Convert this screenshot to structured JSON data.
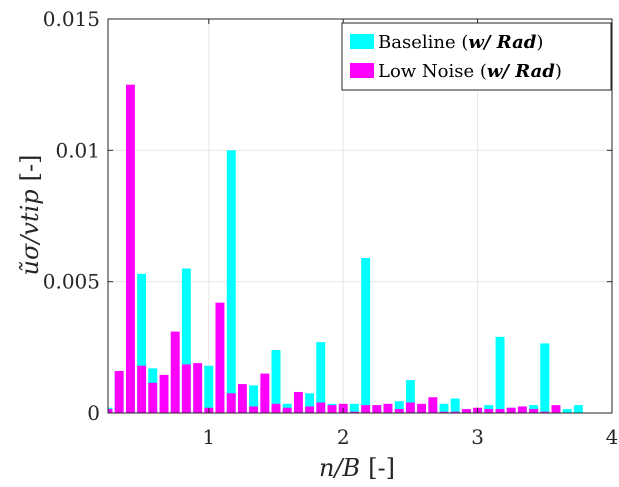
{
  "chart_data": {
    "type": "bar",
    "xlabel": {
      "main": "n/B",
      "unit": "[-]"
    },
    "ylabel": {
      "main": "ũσ/vtip",
      "unit": "[-]"
    },
    "xlim": [
      0.25,
      4.0
    ],
    "ylim": [
      0,
      0.015
    ],
    "xticks": [
      "1",
      "2",
      "3",
      "4"
    ],
    "yticks": [
      "0",
      "0.005",
      "0.01",
      "0.015"
    ],
    "grid": true,
    "legend_position": "top-right",
    "series": [
      {
        "name": "Baseline (w/ Rad)",
        "name_plain": "Baseline (",
        "name_bold": "w/ Rad",
        "name_close": ")",
        "color": "#00ffff",
        "x": [
          0.25,
          0.333,
          0.417,
          0.5,
          0.583,
          0.667,
          0.75,
          0.833,
          0.917,
          1.0,
          1.083,
          1.167,
          1.25,
          1.333,
          1.417,
          1.5,
          1.583,
          1.667,
          1.75,
          1.833,
          1.917,
          2.0,
          2.083,
          2.167,
          2.25,
          2.333,
          2.417,
          2.5,
          2.583,
          2.667,
          2.75,
          2.833,
          2.917,
          3.0,
          3.083,
          3.167,
          3.25,
          3.333,
          3.417,
          3.5,
          3.583,
          3.667,
          3.75,
          3.833,
          3.917,
          4.0
        ],
        "values": [
          0.0002,
          0.0015,
          0.0019,
          0.0053,
          0.0017,
          0.00105,
          0.0014,
          0.0055,
          0.0018,
          0.0018,
          0.0003,
          0.01,
          0.00075,
          0.00105,
          0.00045,
          0.0024,
          0.00035,
          0.0002,
          0.00075,
          0.0027,
          0.00035,
          0.00025,
          0.00035,
          0.0059,
          0.0003,
          0.0003,
          0.00045,
          0.00125,
          0.00025,
          0.0004,
          0.00035,
          0.00055,
          0.00015,
          0.00015,
          0.0003,
          0.0029,
          0.0002,
          0.0002,
          0.0003,
          0.00265,
          0.0002,
          0.00015,
          0.0003,
          0,
          0,
          0
        ]
      },
      {
        "name": "Low Noise (w/ Rad)",
        "name_plain": "Low Noise (",
        "name_bold": "w/ Rad",
        "name_close": ")",
        "color": "#ff00ff",
        "x": [
          0.25,
          0.333,
          0.417,
          0.5,
          0.583,
          0.667,
          0.75,
          0.833,
          0.917,
          1.0,
          1.083,
          1.167,
          1.25,
          1.333,
          1.417,
          1.5,
          1.583,
          1.667,
          1.75,
          1.833,
          1.917,
          2.0,
          2.083,
          2.167,
          2.25,
          2.333,
          2.417,
          2.5,
          2.583,
          2.667,
          2.75,
          2.833,
          2.917,
          3.0,
          3.083,
          3.167,
          3.25,
          3.333,
          3.417,
          3.5,
          3.583,
          3.667,
          3.75,
          3.833,
          3.917,
          4.0
        ],
        "values": [
          0.00015,
          0.0016,
          0.0125,
          0.0018,
          0.00115,
          0.00145,
          0.0031,
          0.00185,
          0.0019,
          0.0002,
          0.0042,
          0.00075,
          0.0011,
          0.00025,
          0.0015,
          0.00035,
          0.0002,
          0.0008,
          0.00025,
          0.0004,
          0.0003,
          0.00035,
          5e-05,
          0.0003,
          0.0003,
          0.00035,
          0.00015,
          0.0004,
          0.00035,
          0.0006,
          5e-05,
          5e-05,
          0.00015,
          0.0002,
          0.00015,
          0.00015,
          0.0002,
          0.00025,
          0.00015,
          5e-05,
          0.0003,
          0,
          0,
          0,
          0,
          0
        ]
      }
    ]
  }
}
